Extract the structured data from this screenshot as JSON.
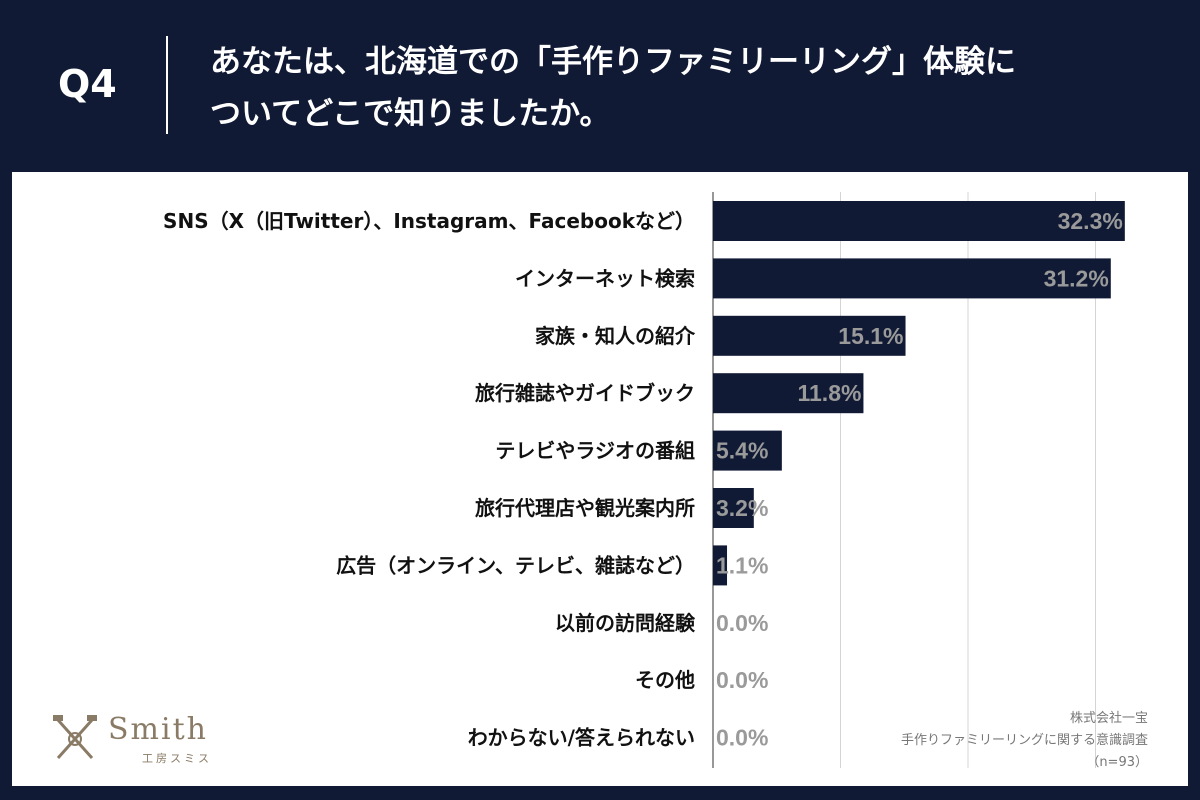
{
  "header": {
    "question_number": "Q4",
    "question_line1": "あなたは、北海道での「手作りファミリーリング」体験に",
    "question_line2": "ついてどこで知りましたか。"
  },
  "chart_data": {
    "type": "bar",
    "orientation": "horizontal",
    "categories": [
      "SNS（X（旧Twitter）、Instagram、Facebookなど）",
      "インターネット検索",
      "家族・知人の紹介",
      "旅行雑誌やガイドブック",
      "テレビやラジオの番組",
      "旅行代理店や観光案内所",
      "広告（オンライン、テレビ、雑誌など）",
      "以前の訪問経験",
      "その他",
      "わからない/答えられない"
    ],
    "values": [
      32.3,
      31.2,
      15.1,
      11.8,
      5.4,
      3.2,
      1.1,
      0.0,
      0.0,
      0.0
    ],
    "value_labels": [
      "32.3%",
      "31.2%",
      "15.1%",
      "11.8%",
      "5.4%",
      "3.2%",
      "1.1%",
      "0.0%",
      "0.0%",
      "0.0%"
    ],
    "xlim": [
      0,
      35
    ],
    "grid": true,
    "bar_color": "#111a35",
    "label_color": "#9a9a9a"
  },
  "logo": {
    "name": "Smith",
    "sub": "工房スミス"
  },
  "source": {
    "line1": "株式会社一宝",
    "line2": "手作りファミリーリングに関する意識調査",
    "line3": "（n=93）"
  }
}
